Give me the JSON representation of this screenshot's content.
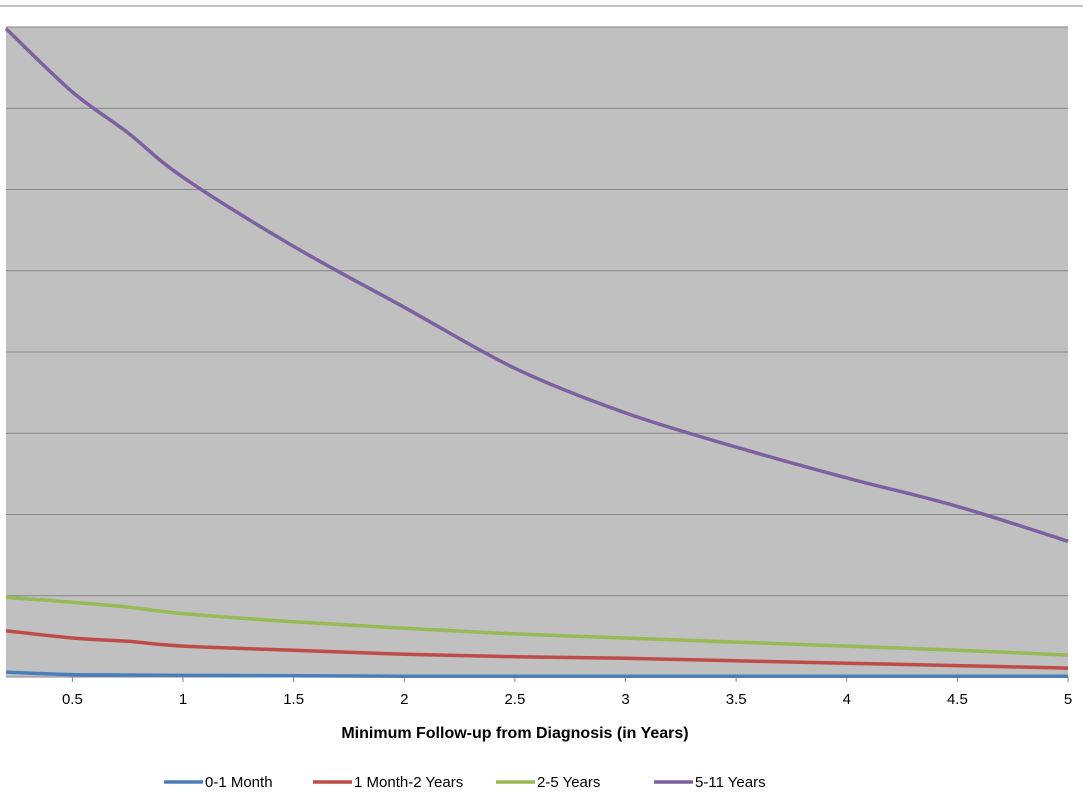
{
  "chart_data": {
    "type": "line",
    "title": "",
    "xlabel": "Minimum Follow-up from Diagnosis (in Years)",
    "ylabel": "",
    "xlim": [
      0.2,
      5
    ],
    "ylim": [
      0,
      8
    ],
    "grid": "horizontal",
    "plot_background": "#c0c0c0",
    "legend_position": "bottom",
    "x_ticks": [
      "0.5",
      "1",
      "1.5",
      "2",
      "2.5",
      "3",
      "3.5",
      "4",
      "4.5",
      "5"
    ],
    "series": [
      {
        "name": "0-1 Month",
        "color": "#4a7ebb",
        "x": [
          0.2,
          0.5,
          0.75,
          1,
          1.5,
          2,
          2.5,
          3,
          3.5,
          4,
          4.5,
          5
        ],
        "y": [
          0.06,
          0.03,
          0.025,
          0.02,
          0.015,
          0.01,
          0.01,
          0.01,
          0.01,
          0.01,
          0.01,
          0.01
        ]
      },
      {
        "name": "1 Month-2 Years",
        "color": "#be4b48",
        "x": [
          0.2,
          0.5,
          0.75,
          1,
          1.5,
          2,
          2.5,
          3,
          3.5,
          4,
          4.5,
          5
        ],
        "y": [
          0.57,
          0.48,
          0.44,
          0.38,
          0.33,
          0.28,
          0.25,
          0.23,
          0.2,
          0.17,
          0.14,
          0.11
        ]
      },
      {
        "name": "2-5 Years",
        "color": "#98b954",
        "x": [
          0.2,
          0.5,
          0.75,
          1,
          1.5,
          2,
          2.5,
          3,
          3.5,
          4,
          4.5,
          5
        ],
        "y": [
          0.98,
          0.92,
          0.86,
          0.78,
          0.68,
          0.6,
          0.53,
          0.48,
          0.43,
          0.38,
          0.33,
          0.27
        ]
      },
      {
        "name": "5-11 Years",
        "color": "#7d60a0",
        "x": [
          0.2,
          0.5,
          0.75,
          1,
          1.5,
          2,
          2.5,
          3,
          3.5,
          4,
          4.5,
          5
        ],
        "y": [
          7.98,
          7.2,
          6.7,
          6.15,
          5.3,
          4.55,
          3.8,
          3.25,
          2.83,
          2.45,
          2.1,
          1.67
        ]
      }
    ]
  }
}
